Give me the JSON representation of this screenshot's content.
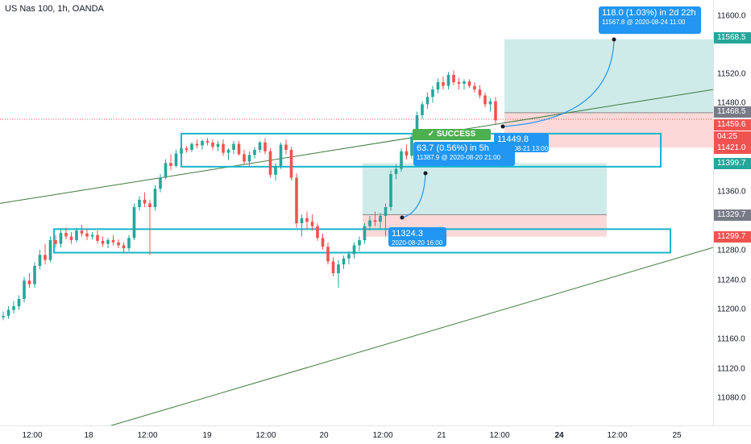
{
  "chart_title": "US Nas 100, 1h, OANDA",
  "colors": {
    "up": "#26a69a",
    "down": "#ef5350",
    "box": "#16b6c8",
    "trend": "#3d7a3d",
    "tip": "#2196f3",
    "success": "#4caf50"
  },
  "axis": {
    "y_ticks": [
      "11600.0",
      "11520.0",
      "11480.0",
      "11360.0",
      "11280.0",
      "11240.0",
      "11200.0",
      "11160.0",
      "11120.0",
      "11080.0"
    ],
    "x_ticks": [
      {
        "label": "12:00",
        "bold": false
      },
      {
        "label": "18",
        "bold": false
      },
      {
        "label": "12:00",
        "bold": false
      },
      {
        "label": "19",
        "bold": false
      },
      {
        "label": "12:00",
        "bold": false
      },
      {
        "label": "20",
        "bold": false
      },
      {
        "label": "12:00",
        "bold": false
      },
      {
        "label": "21",
        "bold": false
      },
      {
        "label": "12:00",
        "bold": false
      },
      {
        "label": "24",
        "bold": true
      },
      {
        "label": "12:00",
        "bold": false
      },
      {
        "label": "25",
        "bold": false
      }
    ]
  },
  "price_badges": [
    {
      "value": "11568.5",
      "color": "#26a69a"
    },
    {
      "value": "11468.5",
      "color": "#787b86"
    },
    {
      "value": "11459.6",
      "color": "#ef5350"
    },
    {
      "value": "04:25",
      "color": "#ef5350"
    },
    {
      "value": "11421.0",
      "color": "#ef5350"
    },
    {
      "value": "11399.7",
      "color": "#26a69a"
    },
    {
      "value": "11329.7",
      "color": "#787b86"
    },
    {
      "value": "11299.7",
      "color": "#ef5350"
    }
  ],
  "annotations": {
    "tip_top_main": "118.0 (1.03%) in 2d 22h",
    "tip_top_sub": "11567.8 @ 2020-08-24  11:00",
    "tip_mid_main": "63.7 (0.56%) in 5h",
    "tip_mid_sub": "11387.9 @ 2020-08-20  21:00",
    "tip_entry2_main": "11449.8",
    "tip_entry2_sub": "2020-08-21 13:00",
    "tip_entry1_main": "11324.3",
    "tip_entry1_sub": "2020-08-20 16:00",
    "success_label": "✓ SUCCESS"
  },
  "chart_data": {
    "type": "candlestick",
    "symbol": "US Nas 100, 1h, OANDA",
    "ylim": [
      11040,
      11630
    ],
    "candles": [
      [
        11190,
        11198,
        11186,
        11192
      ],
      [
        11192,
        11205,
        11188,
        11200
      ],
      [
        11200,
        11212,
        11195,
        11205
      ],
      [
        11205,
        11220,
        11200,
        11215
      ],
      [
        11215,
        11245,
        11210,
        11240
      ],
      [
        11240,
        11250,
        11230,
        11235
      ],
      [
        11235,
        11265,
        11230,
        11260
      ],
      [
        11260,
        11282,
        11255,
        11275
      ],
      [
        11275,
        11290,
        11262,
        11268
      ],
      [
        11268,
        11300,
        11265,
        11295
      ],
      [
        11295,
        11302,
        11285,
        11290
      ],
      [
        11290,
        11310,
        11285,
        11305
      ],
      [
        11305,
        11312,
        11296,
        11300
      ],
      [
        11300,
        11306,
        11290,
        11295
      ],
      [
        11295,
        11312,
        11292,
        11308
      ],
      [
        11308,
        11316,
        11300,
        11304
      ],
      [
        11304,
        11310,
        11295,
        11300
      ],
      [
        11300,
        11306,
        11296,
        11302
      ],
      [
        11302,
        11308,
        11290,
        11294
      ],
      [
        11294,
        11300,
        11286,
        11290
      ],
      [
        11290,
        11298,
        11284,
        11295
      ],
      [
        11295,
        11302,
        11288,
        11292
      ],
      [
        11292,
        11296,
        11284,
        11288
      ],
      [
        11288,
        11292,
        11278,
        11284
      ],
      [
        11284,
        11302,
        11280,
        11298
      ],
      [
        11298,
        11345,
        11295,
        11340
      ],
      [
        11340,
        11355,
        11335,
        11350
      ],
      [
        11350,
        11360,
        11340,
        11345
      ],
      [
        11345,
        11350,
        11275,
        11340
      ],
      [
        11340,
        11370,
        11335,
        11365
      ],
      [
        11365,
        11385,
        11360,
        11380
      ],
      [
        11380,
        11405,
        11378,
        11400
      ],
      [
        11400,
        11412,
        11390,
        11396
      ],
      [
        11396,
        11418,
        11394,
        11413
      ],
      [
        11413,
        11425,
        11408,
        11420
      ],
      [
        11420,
        11423,
        11414,
        11418
      ],
      [
        11418,
        11428,
        11415,
        11426
      ],
      [
        11426,
        11432,
        11420,
        11424
      ],
      [
        11424,
        11432,
        11418,
        11430
      ],
      [
        11430,
        11434,
        11424,
        11428
      ],
      [
        11428,
        11432,
        11418,
        11422
      ],
      [
        11422,
        11430,
        11416,
        11426
      ],
      [
        11426,
        11432,
        11410,
        11414
      ],
      [
        11414,
        11420,
        11404,
        11418
      ],
      [
        11418,
        11430,
        11412,
        11426
      ],
      [
        11426,
        11430,
        11410,
        11412
      ],
      [
        11412,
        11418,
        11398,
        11402
      ],
      [
        11402,
        11416,
        11396,
        11411
      ],
      [
        11411,
        11422,
        11406,
        11418
      ],
      [
        11418,
        11430,
        11414,
        11428
      ],
      [
        11428,
        11434,
        11412,
        11416
      ],
      [
        11416,
        11420,
        11380,
        11384
      ],
      [
        11384,
        11400,
        11376,
        11396
      ],
      [
        11396,
        11428,
        11392,
        11425
      ],
      [
        11425,
        11432,
        11412,
        11418
      ],
      [
        11418,
        11422,
        11376,
        11380
      ],
      [
        11380,
        11386,
        11312,
        11318
      ],
      [
        11318,
        11330,
        11300,
        11325
      ],
      [
        11325,
        11334,
        11310,
        11320
      ],
      [
        11320,
        11330,
        11308,
        11314
      ],
      [
        11314,
        11318,
        11294,
        11298
      ],
      [
        11298,
        11304,
        11282,
        11286
      ],
      [
        11286,
        11292,
        11262,
        11266
      ],
      [
        11266,
        11272,
        11246,
        11250
      ],
      [
        11250,
        11268,
        11230,
        11262
      ],
      [
        11262,
        11274,
        11256,
        11270
      ],
      [
        11270,
        11280,
        11262,
        11276
      ],
      [
        11276,
        11292,
        11270,
        11288
      ],
      [
        11288,
        11300,
        11280,
        11295
      ],
      [
        11295,
        11318,
        11290,
        11314
      ],
      [
        11314,
        11328,
        11308,
        11322
      ],
      [
        11322,
        11334,
        11314,
        11320
      ],
      [
        11320,
        11332,
        11310,
        11328
      ],
      [
        11328,
        11345,
        11300,
        11340
      ],
      [
        11340,
        11390,
        11335,
        11385
      ],
      [
        11385,
        11398,
        11378,
        11392
      ],
      [
        11392,
        11420,
        11388,
        11416
      ],
      [
        11416,
        11425,
        11405,
        11410
      ],
      [
        11410,
        11440,
        11406,
        11436
      ],
      [
        11436,
        11470,
        11432,
        11465
      ],
      [
        11465,
        11484,
        11460,
        11480
      ],
      [
        11480,
        11496,
        11474,
        11490
      ],
      [
        11490,
        11505,
        11482,
        11500
      ],
      [
        11500,
        11515,
        11495,
        11510
      ],
      [
        11510,
        11518,
        11500,
        11505
      ],
      [
        11505,
        11524,
        11500,
        11520
      ],
      [
        11520,
        11526,
        11506,
        11510
      ],
      [
        11510,
        11516,
        11500,
        11508
      ],
      [
        11508,
        11514,
        11500,
        11511
      ],
      [
        11511,
        11514,
        11502,
        11505
      ],
      [
        11505,
        11510,
        11496,
        11500
      ],
      [
        11500,
        11506,
        11488,
        11492
      ],
      [
        11492,
        11496,
        11476,
        11480
      ],
      [
        11480,
        11488,
        11470,
        11484
      ],
      [
        11484,
        11490,
        11452,
        11458
      ]
    ],
    "trendlines": [
      {
        "from": [
          11345,
          0
        ],
        "to": [
          11500,
          885
        ]
      },
      {
        "from": [
          11040,
          130
        ],
        "to": [
          11285,
          885
        ]
      }
    ],
    "zones": [
      {
        "range": [
          11278,
          11310
        ]
      },
      {
        "range": [
          11395,
          11440
        ]
      }
    ],
    "positions": [
      {
        "type": "long",
        "entry": 11329.7,
        "target": 11399.7,
        "stop": 11299.7
      },
      {
        "type": "long",
        "entry": 11468.5,
        "target": 11568.5,
        "stop": 11421.0
      }
    ]
  }
}
